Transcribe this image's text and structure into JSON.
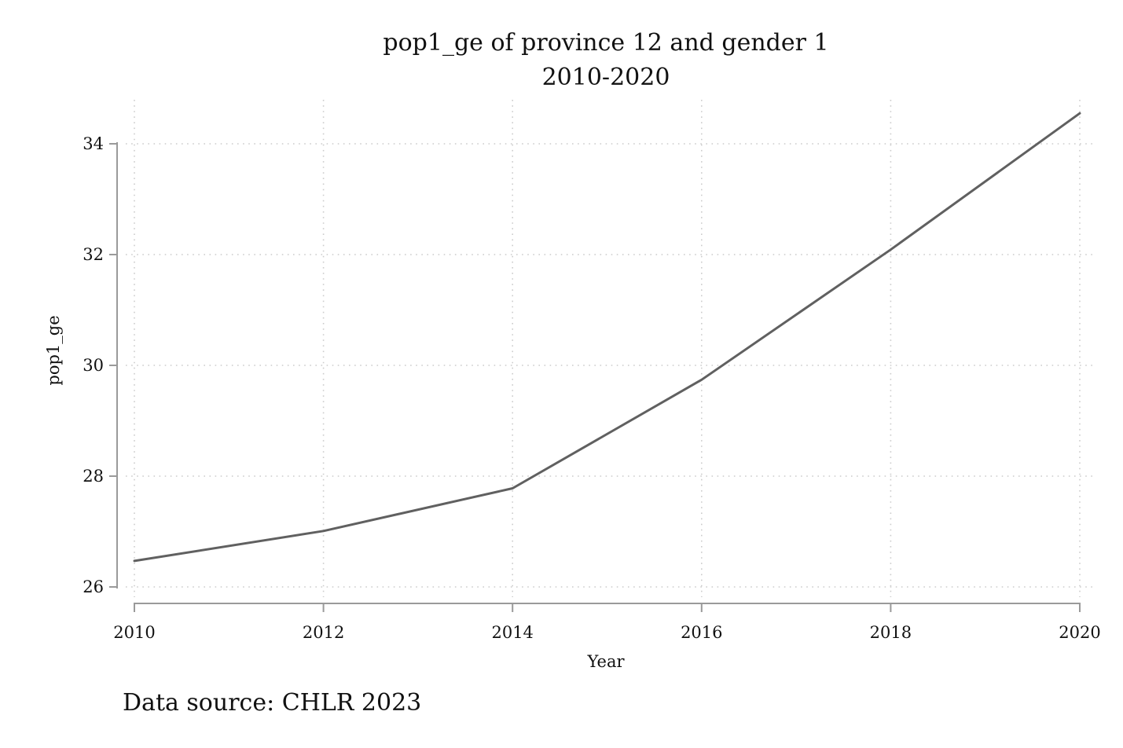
{
  "colors": {
    "line": "#606060",
    "axis": "#9a9a9a",
    "grid": "#cccccc",
    "text": "#111111"
  },
  "chart_data": {
    "type": "line",
    "title": "pop1_ge of province 12 and gender 1",
    "subtitle": "2010-2020",
    "xlabel": "Year",
    "ylabel": "pop1_ge",
    "note": "Data source: CHLR 2023",
    "x": [
      2010,
      2012,
      2014,
      2016,
      2018,
      2020
    ],
    "series": [
      {
        "values": [
          26.47,
          27.01,
          27.78,
          29.74,
          32.09,
          34.55
        ]
      }
    ],
    "xticks": [
      2010,
      2012,
      2014,
      2016,
      2018,
      2020
    ],
    "xtick_labels": [
      "2010",
      "2012",
      "2014",
      "2016",
      "2018",
      "2020"
    ],
    "yticks": [
      26,
      28,
      30,
      32,
      34
    ],
    "ytick_labels": [
      "26",
      "28",
      "30",
      "32",
      "34"
    ],
    "xlim": [
      2010,
      2020
    ],
    "ylim": [
      26,
      34
    ],
    "grid": true,
    "legend": false
  }
}
